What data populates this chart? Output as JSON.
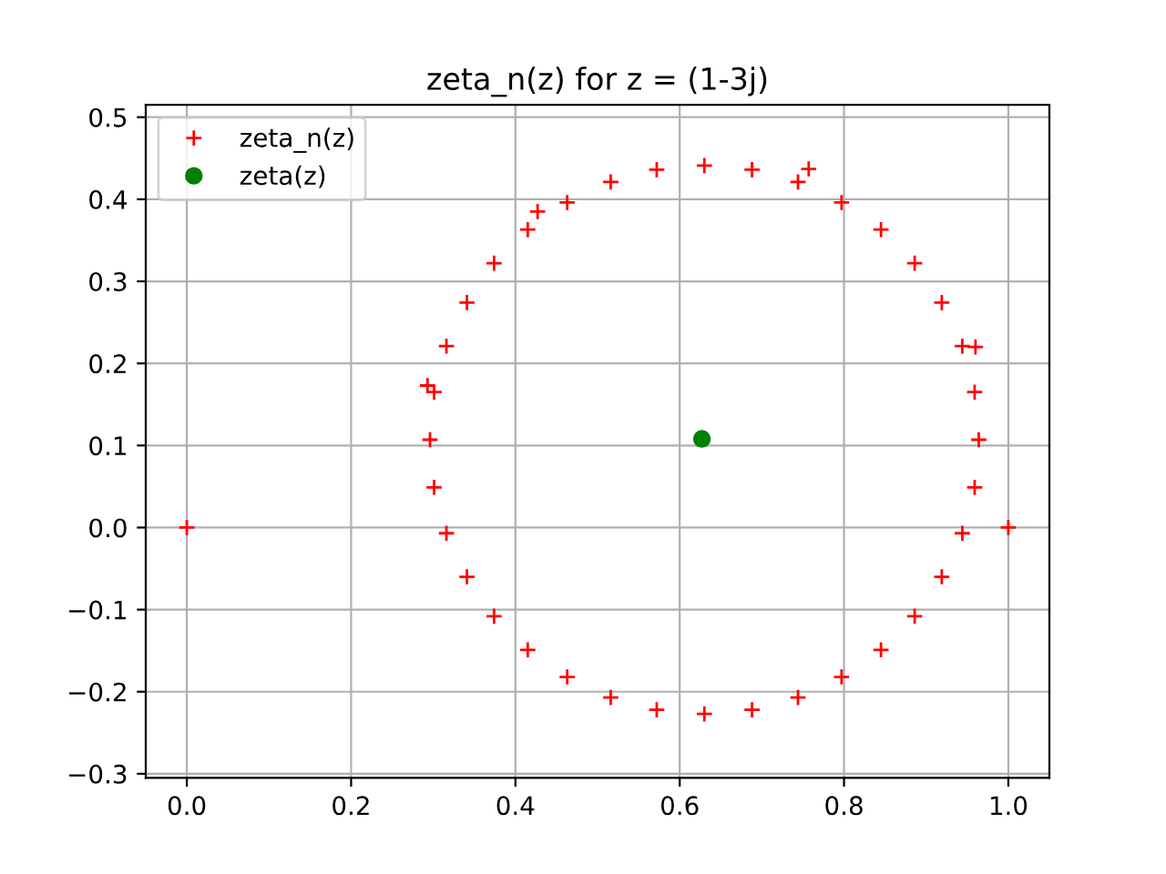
{
  "chart_data": {
    "type": "scatter",
    "title": "zeta_n(z) for z = (1-3j)",
    "series": [
      {
        "name": "zeta_n(z)",
        "color": "#ff0000",
        "marker": "cross",
        "x": [
          0,
          1,
          0.757,
          0.427,
          0.293,
          0.96,
          0.964,
          0.959,
          0.944,
          0.919,
          0.886,
          0.845,
          0.797,
          0.744,
          0.688,
          0.63,
          0.572,
          0.516,
          0.463,
          0.415,
          0.374,
          0.341,
          0.316,
          0.301,
          0.296,
          0.301,
          0.316,
          0.341,
          0.374,
          0.415,
          0.463,
          0.516,
          0.572,
          0.63,
          0.688,
          0.744,
          0.797,
          0.845,
          0.886,
          0.919,
          0.944,
          0.959
        ],
        "values": [
          0,
          0,
          0.437,
          0.385,
          0.173,
          0.22,
          0.107,
          0.165,
          0.221,
          0.274,
          0.322,
          0.363,
          0.396,
          0.421,
          0.436,
          0.441,
          0.436,
          0.421,
          0.396,
          0.363,
          0.322,
          0.274,
          0.221,
          0.165,
          0.107,
          0.049,
          -0.007,
          -0.06,
          -0.108,
          -0.149,
          -0.182,
          -0.207,
          -0.222,
          -0.227,
          -0.222,
          -0.207,
          -0.182,
          -0.149,
          -0.108,
          -0.06,
          -0.007,
          0.049
        ]
      },
      {
        "name": "zeta(z)",
        "color": "#008000",
        "marker": "circle",
        "x": [
          0.627
        ],
        "values": [
          0.108
        ]
      }
    ],
    "xlim": [
      -0.05,
      1.05
    ],
    "ylim": [
      -0.305,
      0.515
    ],
    "xticks": [
      {
        "value": 0,
        "label": "0.0"
      },
      0.2,
      0.4,
      0.6,
      0.8,
      {
        "value": 1,
        "label": "1.0"
      }
    ],
    "yticks": [
      {
        "value": -0.3,
        "label": "−0.3"
      },
      {
        "value": -0.2,
        "label": "−0.2"
      },
      {
        "value": -0.1,
        "label": "−0.1"
      },
      {
        "value": 0,
        "label": "0.0"
      },
      0.1,
      0.2,
      0.3,
      0.4,
      0.5
    ],
    "grid": true,
    "legend": "top left"
  }
}
